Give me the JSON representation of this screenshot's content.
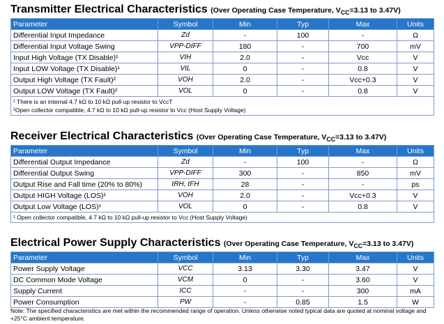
{
  "columns": [
    "Parameter",
    "Symbol",
    "Min",
    "Typ",
    "Max",
    "Units"
  ],
  "transmitter": {
    "title": "Transmitter Electrical Characteristics",
    "condition": "(Over Operating Case Temperature, V",
    "condition_sub": "CC",
    "condition_end": "=3.13 to 3.47V)",
    "rows": [
      {
        "param": "Differential Input Impedance",
        "symbol": "Zd",
        "min": "-",
        "typ": "100",
        "max": "-",
        "units": "Ω"
      },
      {
        "param": "Differential Input Voltage Swing",
        "symbol": "VPP-DIFF",
        "min": "180",
        "typ": "-",
        "max": "700",
        "units": "mV"
      },
      {
        "param": "Input High Voltage (TX Disable)¹",
        "symbol": "VIH",
        "min": "2.0",
        "typ": "-",
        "max": "Vcc",
        "units": "V"
      },
      {
        "param": "Input LOW Voltage (TX Disable)¹",
        "symbol": "VIL",
        "min": "0",
        "typ": "-",
        "max": "0.8",
        "units": "V"
      },
      {
        "param": "Output High Voltage (TX Fault)²",
        "symbol": "VOH",
        "min": "2.0",
        "typ": "-",
        "max": "Vcc+0.3",
        "units": "V"
      },
      {
        "param": "Output LOW Voltage (TX Fault)²",
        "symbol": "VOL",
        "min": "0",
        "typ": "-",
        "max": "0.8",
        "units": "V"
      }
    ],
    "notes": [
      "¹ There is an internal 4.7 kΩ  to 10 kΩ pull-up resistor to VccT",
      "²Open collector compatible, 4.7 kΩ  to 10 kΩ pull-up resistor to Vcc (Host Supply Voltage)"
    ]
  },
  "receiver": {
    "title": "Receiver Electrical Characteristics",
    "condition": "(Over Operating Case Temperature, V",
    "condition_sub": "CC",
    "condition_end": "=3.13 to 3.47V)",
    "rows": [
      {
        "param": "Differential Output Impedance",
        "symbol": "Zd",
        "min": "-",
        "typ": "100",
        "max": "-",
        "units": "Ω"
      },
      {
        "param": "Differential Output Swing",
        "symbol": "VPP-DIFF",
        "min": "300",
        "typ": "-",
        "max": "850",
        "units": "mV"
      },
      {
        "param": "Output Rise and Fall time (20% to 80%)",
        "symbol": "tRH, tFH",
        "min": "28",
        "typ": "-",
        "max": "-",
        "units": "ps"
      },
      {
        "param": "Output HIGH Voltage (LOS)¹",
        "symbol": "VOH",
        "min": "2.0",
        "typ": "-",
        "max": "Vcc+0.3",
        "units": "V"
      },
      {
        "param": "Output Low Voltage (LOS)¹",
        "symbol": "VOL",
        "min": "0",
        "typ": "-",
        "max": "0.8",
        "units": "V"
      }
    ],
    "notes": [
      "¹ Open collector compatible, 4.7 kΩ  to 10 kΩ pull-up resistor to Vcc (Host Supply Voltage)"
    ]
  },
  "power": {
    "title": "Electrical Power Supply Characteristics",
    "condition": "(Over Operating Case Temperature, V",
    "condition_sub": "CC",
    "condition_end": "=3.13 to 3.47V)",
    "rows": [
      {
        "param": "Power Supply Voltage",
        "symbol": "VCC",
        "min": "3.13",
        "typ": "3.30",
        "max": "3.47",
        "units": "V"
      },
      {
        "param": "DC Common Mode Voltage",
        "symbol": "VCM",
        "min": "0",
        "typ": "-",
        "max": "3.60",
        "units": "V"
      },
      {
        "param": "Supply Current",
        "symbol": "ICC",
        "min": "-",
        "typ": "-",
        "max": "300",
        "units": "mA"
      },
      {
        "param": "Power Consumption",
        "symbol": "PW",
        "min": "-",
        "typ": "0.85",
        "max": "1.5",
        "units": "W"
      }
    ],
    "footnote": "Note: The specified characteristics are met within the recommended range of operation. Unless otherwise noted typical data are quoted at nominal voltage and +25°C ambient temperature."
  },
  "colors": {
    "header_bg": "#2776c9",
    "header_text": "#ffffff",
    "border": "#7a9cc8"
  }
}
